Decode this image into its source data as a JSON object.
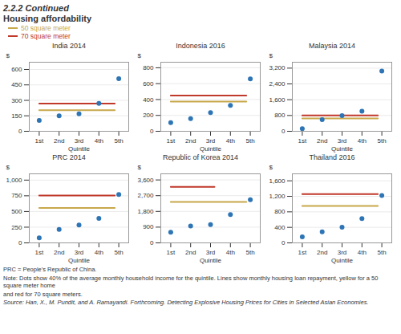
{
  "title": "2.2.2  Continued",
  "subtitle": "Housing affordability",
  "legend": "upper left",
  "annotations": [
    "PRC = People’s Republic of China.",
    "Note: Dots show 40% of the average monthly household income for the quintile. Lines show monthly housing loan repayment, yellow for a 50 square meter home",
    "and red for 70 square meters.",
    "Source: Han, X., M. Pundit, and A. Ramayandi. Forthcoming. Detecting Explosive Housing Prices for Cities in Selected Asian Economies."
  ],
  "chart_data": [
    {
      "type": "scatter",
      "title": "India 2014",
      "xlabel": "Quintile",
      "ylabel": "$",
      "x": [
        1,
        2,
        3,
        4,
        5
      ],
      "values": [
        105,
        150,
        170,
        270,
        510
      ],
      "color": "#2E75B6",
      "xlim": [
        0.5,
        5.5
      ],
      "xticks": [
        {
          "value": 1,
          "label": "1st"
        },
        {
          "value": 2,
          "label": "2nd"
        },
        {
          "value": 3,
          "label": "3rd"
        },
        {
          "value": 4,
          "label": "4th"
        },
        {
          "value": 5,
          "label": "5th"
        }
      ],
      "ylim": [
        0,
        670
      ],
      "yticks": [
        0,
        150,
        300,
        450,
        600
      ],
      "grid": true,
      "series": [
        {
          "name": "50 square meter",
          "type": "line",
          "color": "#C8A84B",
          "x": [
            1,
            4.8
          ],
          "values": [
            205,
            205
          ]
        },
        {
          "name": "70 square meter",
          "type": "line",
          "color": "#C0392B",
          "x": [
            1,
            4.8
          ],
          "values": [
            268,
            268
          ]
        }
      ]
    },
    {
      "type": "scatter",
      "title": "Indonesia 2016",
      "xlabel": "Quintile",
      "ylabel": "$",
      "x": [
        1,
        2,
        3,
        4,
        5
      ],
      "values": [
        110,
        160,
        235,
        325,
        660
      ],
      "color": "#2E75B6",
      "xlim": [
        0.5,
        5.5
      ],
      "xticks": [
        {
          "value": 1,
          "label": "1st"
        },
        {
          "value": 2,
          "label": "2nd"
        },
        {
          "value": 3,
          "label": "3rd"
        },
        {
          "value": 4,
          "label": "4th"
        },
        {
          "value": 5,
          "label": "5th"
        }
      ],
      "ylim": [
        0,
        870
      ],
      "yticks": [
        0,
        200,
        400,
        600,
        800
      ],
      "grid": true,
      "series": [
        {
          "name": "50 square meter",
          "type": "line",
          "color": "#C8A84B",
          "x": [
            1,
            4.8
          ],
          "values": [
            375,
            375
          ]
        },
        {
          "name": "70 square meter",
          "type": "line",
          "color": "#C0392B",
          "x": [
            1,
            4.8
          ],
          "values": [
            450,
            450
          ]
        }
      ]
    },
    {
      "type": "scatter",
      "title": "Malaysia 2014",
      "xlabel": "Quintile",
      "ylabel": "$",
      "x": [
        1,
        2,
        3,
        4,
        5
      ],
      "values": [
        130,
        590,
        790,
        1020,
        3050
      ],
      "color": "#2E75B6",
      "xlim": [
        0.5,
        5.5
      ],
      "xticks": [
        {
          "value": 1,
          "label": "1st"
        },
        {
          "value": 2,
          "label": "2nd"
        },
        {
          "value": 3,
          "label": "3rd"
        },
        {
          "value": 4,
          "label": "4th"
        },
        {
          "value": 5,
          "label": "5th"
        }
      ],
      "ylim": [
        0,
        3500
      ],
      "yticks": [
        0,
        800,
        {
          "value": 1600,
          "label": "1,600"
        },
        {
          "value": 2400,
          "label": "2,400"
        },
        {
          "value": 3200,
          "label": "3,200"
        }
      ],
      "grid": true,
      "series": [
        {
          "name": "50 square meter",
          "type": "line",
          "color": "#C8A84B",
          "x": [
            1,
            4.8
          ],
          "values": [
            650,
            650
          ]
        },
        {
          "name": "70 square meter",
          "type": "line",
          "color": "#C0392B",
          "x": [
            1,
            4.8
          ],
          "values": [
            800,
            800
          ]
        }
      ]
    },
    {
      "type": "scatter",
      "title": "PRC 2014",
      "xlabel": "Quintile",
      "ylabel": "$",
      "x": [
        1,
        2,
        3,
        4,
        5
      ],
      "values": [
        80,
        215,
        285,
        390,
        770
      ],
      "color": "#2E75B6",
      "xlim": [
        0.5,
        5.5
      ],
      "xticks": [
        {
          "value": 1,
          "label": "1st"
        },
        {
          "value": 2,
          "label": "2nd"
        },
        {
          "value": 3,
          "label": "3rd"
        },
        {
          "value": 4,
          "label": "4th"
        },
        {
          "value": 5,
          "label": "5th"
        }
      ],
      "ylim": [
        0,
        1100
      ],
      "yticks": [
        0,
        250,
        500,
        750,
        {
          "value": 1000,
          "label": "1,000"
        }
      ],
      "grid": true,
      "series": [
        {
          "name": "50 square meter",
          "type": "line",
          "color": "#C8A84B",
          "x": [
            1,
            4.8
          ],
          "values": [
            555,
            555
          ]
        },
        {
          "name": "70 square meter",
          "type": "line",
          "color": "#C0392B",
          "x": [
            1,
            4.8
          ],
          "values": [
            755,
            755
          ]
        }
      ]
    },
    {
      "type": "scatter",
      "title": "Republic of Korea 2014",
      "xlabel": "Quintile",
      "ylabel": "$",
      "x": [
        1,
        2,
        3,
        4,
        5
      ],
      "values": [
        610,
        960,
        1050,
        1620,
        2470
      ],
      "color": "#2E75B6",
      "xlim": [
        0.5,
        5.5
      ],
      "xticks": [
        {
          "value": 1,
          "label": "1st"
        },
        {
          "value": 2,
          "label": "2nd"
        },
        {
          "value": 3,
          "label": "3rd"
        },
        {
          "value": 4,
          "label": "4th"
        },
        {
          "value": 5,
          "label": "5th"
        }
      ],
      "ylim": [
        0,
        3950
      ],
      "yticks": [
        0,
        900,
        {
          "value": 1800,
          "label": "1,800"
        },
        {
          "value": 2700,
          "label": "2,700"
        },
        {
          "value": 3600,
          "label": "3,600"
        }
      ],
      "grid": true,
      "series": [
        {
          "name": "50 square meter",
          "type": "line",
          "color": "#C8A84B",
          "x": [
            1,
            4.8
          ],
          "values": [
            2340,
            2340
          ]
        },
        {
          "name": "70 square meter",
          "type": "line",
          "color": "#C0392B",
          "x": [
            1,
            3.2
          ],
          "values": [
            3200,
            3200
          ]
        }
      ]
    },
    {
      "type": "scatter",
      "title": "Thailand 2016",
      "xlabel": "Quintile",
      "ylabel": "$",
      "x": [
        1,
        2,
        3,
        4,
        5
      ],
      "values": [
        155,
        285,
        405,
        625,
        1220
      ],
      "color": "#2E75B6",
      "xlim": [
        0.5,
        5.5
      ],
      "xticks": [
        {
          "value": 1,
          "label": "1st"
        },
        {
          "value": 2,
          "label": "2nd"
        },
        {
          "value": 3,
          "label": "3rd"
        },
        {
          "value": 4,
          "label": "4th"
        },
        {
          "value": 5,
          "label": "5th"
        }
      ],
      "ylim": [
        0,
        1780
      ],
      "yticks": [
        0,
        400,
        800,
        {
          "value": 1200,
          "label": "1,200"
        },
        {
          "value": 1600,
          "label": "1,600"
        }
      ],
      "grid": true,
      "series": [
        {
          "name": "50 square meter",
          "type": "line",
          "color": "#C8A84B",
          "x": [
            1,
            4.8
          ],
          "values": [
            950,
            950
          ]
        },
        {
          "name": "70 square meter",
          "type": "line",
          "color": "#C0392B",
          "x": [
            1,
            4.8
          ],
          "values": [
            1255,
            1255
          ]
        }
      ]
    }
  ]
}
